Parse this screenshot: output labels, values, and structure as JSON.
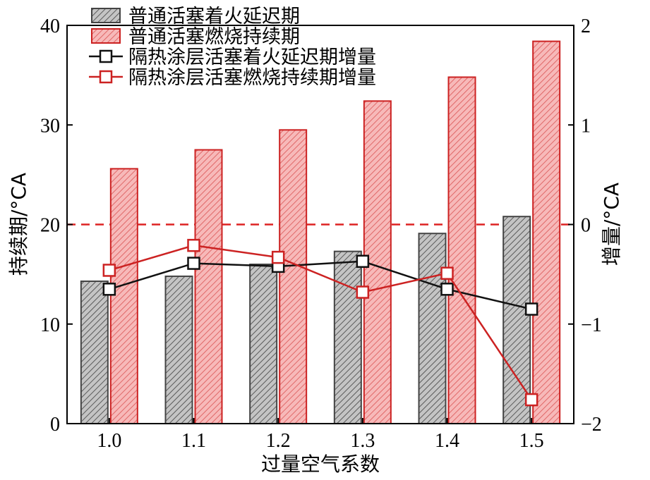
{
  "chart_data": {
    "type": "bar",
    "categories": [
      "1.0",
      "1.1",
      "1.2",
      "1.3",
      "1.4",
      "1.5"
    ],
    "xlabel": "过量空气系数",
    "ylabel_left": "持续期/°CA",
    "ylabel_right": "增量/°CA",
    "ylim_left": [
      0,
      40
    ],
    "ylim_right": [
      -2,
      2
    ],
    "yticks_left": [
      "0",
      "10",
      "20",
      "30",
      "40"
    ],
    "yticks_right": [
      "−2",
      "−1",
      "0",
      "1",
      "2"
    ],
    "grid": false,
    "legend_position": "top-left",
    "reference_line_right": 0,
    "series": [
      {
        "name": "普通活塞着火延迟期",
        "kind": "bar",
        "axis": "left",
        "color": "#444444",
        "fill": "#b8b8b8",
        "values": [
          14.3,
          14.8,
          16.0,
          17.3,
          19.1,
          20.8
        ]
      },
      {
        "name": "普通活塞燃烧持续期",
        "kind": "bar",
        "axis": "left",
        "color": "#cc2222",
        "fill": "#f2a9a9",
        "values": [
          25.6,
          27.5,
          29.5,
          32.4,
          34.8,
          38.4
        ]
      },
      {
        "name": "隔热涂层活塞着火延迟期增量",
        "kind": "line",
        "axis": "right",
        "color": "#111111",
        "values": [
          -0.65,
          -0.39,
          -0.42,
          -0.37,
          -0.65,
          -0.85
        ]
      },
      {
        "name": "隔热涂层活塞燃烧持续期增量",
        "kind": "line",
        "axis": "right",
        "color": "#cc2222",
        "values": [
          -0.46,
          -0.21,
          -0.33,
          -0.68,
          -0.49,
          -1.76
        ]
      }
    ]
  }
}
